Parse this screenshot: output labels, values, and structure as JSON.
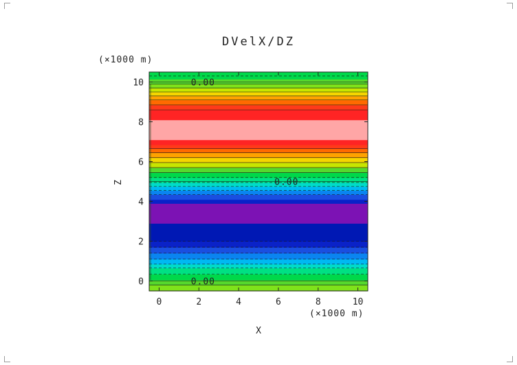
{
  "chart_data": {
    "type": "heatmap",
    "title": "DVelX/DZ",
    "xlabel": "X",
    "ylabel": "Z",
    "x_unit": "(×1000 m)",
    "y_unit": "(×1000 m)",
    "xlim": [
      -0.5,
      10.5
    ],
    "ylim": [
      -0.5,
      10.5
    ],
    "x_ticks": [
      0,
      2,
      4,
      6,
      8,
      10
    ],
    "y_ticks": [
      0,
      2,
      4,
      6,
      8,
      10
    ],
    "bands": [
      {
        "z0": -0.5,
        "z1": -0.2,
        "color": "#7fe31a"
      },
      {
        "z0": -0.2,
        "z1": 0.05,
        "color": "#56d92d"
      },
      {
        "z0": 0.05,
        "z1": 0.35,
        "color": "#00d84a"
      },
      {
        "z0": 0.35,
        "z1": 0.65,
        "color": "#00e083"
      },
      {
        "z0": 0.65,
        "z1": 0.85,
        "color": "#00dcc8"
      },
      {
        "z0": 0.85,
        "z1": 1.1,
        "color": "#00b9f2"
      },
      {
        "z0": 1.1,
        "z1": 1.4,
        "color": "#0a84f0"
      },
      {
        "z0": 1.4,
        "z1": 1.7,
        "color": "#1a4fe0"
      },
      {
        "z0": 1.7,
        "z1": 2.0,
        "color": "#0a22c8"
      },
      {
        "z0": 2.0,
        "z1": 2.9,
        "color": "#0018b4"
      },
      {
        "z0": 2.9,
        "z1": 3.9,
        "color": "#7c12b4"
      },
      {
        "z0": 3.9,
        "z1": 4.1,
        "color": "#0a22c8"
      },
      {
        "z0": 4.1,
        "z1": 4.35,
        "color": "#1a4fe0"
      },
      {
        "z0": 4.35,
        "z1": 4.55,
        "color": "#0a84f0"
      },
      {
        "z0": 4.55,
        "z1": 4.75,
        "color": "#00b9f2"
      },
      {
        "z0": 4.75,
        "z1": 4.95,
        "color": "#00dcc8"
      },
      {
        "z0": 4.95,
        "z1": 5.2,
        "color": "#00e083"
      },
      {
        "z0": 5.2,
        "z1": 5.45,
        "color": "#00d84a"
      },
      {
        "z0": 5.45,
        "z1": 5.7,
        "color": "#56d92d"
      },
      {
        "z0": 5.7,
        "z1": 5.95,
        "color": "#c8e600"
      },
      {
        "z0": 5.95,
        "z1": 6.2,
        "color": "#f5d600"
      },
      {
        "z0": 6.2,
        "z1": 6.45,
        "color": "#ffa200"
      },
      {
        "z0": 6.45,
        "z1": 6.65,
        "color": "#ff6a00"
      },
      {
        "z0": 6.65,
        "z1": 6.85,
        "color": "#ff3a1a"
      },
      {
        "z0": 6.85,
        "z1": 7.1,
        "color": "#ff2424"
      },
      {
        "z0": 7.1,
        "z1": 8.1,
        "color": "#ffa6a6"
      },
      {
        "z0": 8.1,
        "z1": 8.6,
        "color": "#ff2424"
      },
      {
        "z0": 8.6,
        "z1": 8.85,
        "color": "#ff3a1a"
      },
      {
        "z0": 8.85,
        "z1": 9.1,
        "color": "#ff6a00"
      },
      {
        "z0": 9.1,
        "z1": 9.3,
        "color": "#ffa200"
      },
      {
        "z0": 9.3,
        "z1": 9.5,
        "color": "#f5d600"
      },
      {
        "z0": 9.5,
        "z1": 9.7,
        "color": "#c8e600"
      },
      {
        "z0": 9.7,
        "z1": 9.9,
        "color": "#7fe31a"
      },
      {
        "z0": 9.9,
        "z1": 10.15,
        "color": "#56d92d"
      },
      {
        "z0": 10.15,
        "z1": 10.5,
        "color": "#00d84a"
      }
    ],
    "contour_lines": [
      {
        "z": -0.2,
        "style": "solid"
      },
      {
        "z": 0.0,
        "style": "solid"
      },
      {
        "z": 0.35,
        "style": "dashed"
      },
      {
        "z": 0.65,
        "style": "dashed"
      },
      {
        "z": 0.85,
        "style": "dashed"
      },
      {
        "z": 1.1,
        "style": "dashed"
      },
      {
        "z": 1.4,
        "style": "dashed"
      },
      {
        "z": 1.7,
        "style": "dashed"
      },
      {
        "z": 2.0,
        "style": "dashed"
      },
      {
        "z": 4.35,
        "style": "dashed"
      },
      {
        "z": 4.55,
        "style": "dashed"
      },
      {
        "z": 4.75,
        "style": "dashed"
      },
      {
        "z": 4.95,
        "style": "dashed"
      },
      {
        "z": 5.2,
        "style": "dashed"
      },
      {
        "z": 5.0,
        "style": "solid"
      },
      {
        "z": 5.45,
        "style": "solid"
      },
      {
        "z": 5.7,
        "style": "solid"
      },
      {
        "z": 5.95,
        "style": "solid"
      },
      {
        "z": 6.2,
        "style": "solid"
      },
      {
        "z": 6.45,
        "style": "solid"
      },
      {
        "z": 6.65,
        "style": "solid"
      },
      {
        "z": 8.6,
        "style": "solid"
      },
      {
        "z": 8.85,
        "style": "solid"
      },
      {
        "z": 9.1,
        "style": "solid"
      },
      {
        "z": 9.3,
        "style": "solid"
      },
      {
        "z": 9.5,
        "style": "solid"
      },
      {
        "z": 9.7,
        "style": "solid"
      },
      {
        "z": 9.9,
        "style": "solid"
      },
      {
        "z": 10.0,
        "style": "solid"
      },
      {
        "z": 10.3,
        "style": "dashed"
      }
    ],
    "contour_labels": [
      {
        "text": "0.00",
        "x": 1.6,
        "z": 10.0
      },
      {
        "text": "0.00",
        "x": 5.8,
        "z": 5.0
      },
      {
        "text": "0.00",
        "x": 1.6,
        "z": 0.0
      }
    ]
  }
}
